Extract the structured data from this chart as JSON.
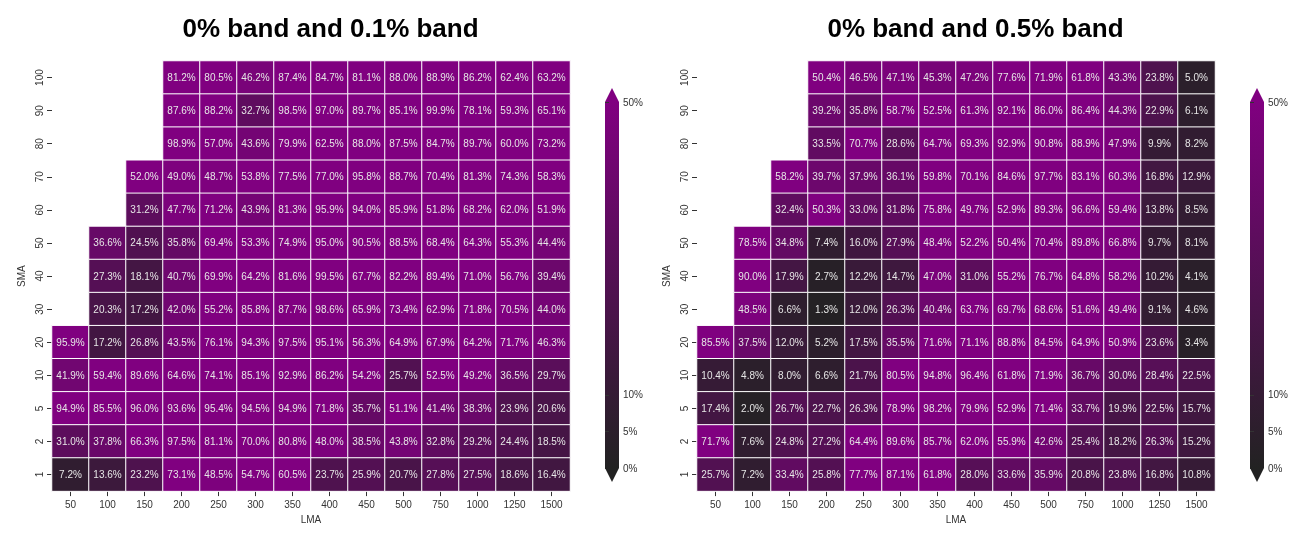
{
  "chart_data": [
    {
      "type": "heatmap",
      "title": "0% band and 0.1% band",
      "xlabel": "LMA",
      "ylabel": "SMA",
      "categories": [
        "50",
        "100",
        "150",
        "200",
        "250",
        "300",
        "350",
        "400",
        "450",
        "500",
        "750",
        "1000",
        "1250",
        "1500"
      ],
      "y_categories": [
        "100",
        "90",
        "80",
        "70",
        "60",
        "50",
        "40",
        "30",
        "20",
        "10",
        "5",
        "2",
        "1"
      ],
      "clim": [
        0,
        50
      ],
      "cticks": [
        {
          "value": 0,
          "label": "0%"
        },
        {
          "value": 5,
          "label": "5%"
        },
        {
          "value": 10,
          "label": "10%"
        },
        {
          "value": 50,
          "label": "50%"
        }
      ],
      "cells": [
        [
          null,
          null,
          null,
          81.2,
          80.5,
          46.2,
          87.4,
          84.7,
          81.1,
          88.0,
          88.9,
          86.2,
          62.4,
          63.2
        ],
        [
          null,
          null,
          null,
          87.6,
          88.2,
          32.7,
          98.5,
          97.0,
          89.7,
          85.1,
          99.9,
          78.1,
          59.3,
          65.1
        ],
        [
          null,
          null,
          null,
          98.9,
          57.0,
          43.6,
          79.9,
          62.5,
          88.0,
          87.5,
          84.7,
          89.7,
          60.0,
          73.2
        ],
        [
          null,
          null,
          52.0,
          49.0,
          48.7,
          53.8,
          77.5,
          77.0,
          95.8,
          88.7,
          70.4,
          81.3,
          74.3,
          58.3
        ],
        [
          null,
          null,
          31.2,
          47.7,
          71.2,
          43.9,
          81.3,
          95.9,
          94.0,
          85.9,
          51.8,
          68.2,
          62.0,
          51.9
        ],
        [
          null,
          36.6,
          24.5,
          35.8,
          69.4,
          53.3,
          74.9,
          95.0,
          90.5,
          88.5,
          68.4,
          64.3,
          55.3,
          44.4
        ],
        [
          null,
          27.3,
          18.1,
          40.7,
          69.9,
          64.2,
          81.6,
          99.5,
          67.7,
          82.2,
          89.4,
          71.0,
          56.7,
          39.4
        ],
        [
          null,
          20.3,
          17.2,
          42.0,
          55.2,
          85.8,
          87.7,
          98.6,
          65.9,
          73.4,
          62.9,
          71.8,
          70.5,
          44.0
        ],
        [
          95.9,
          17.2,
          26.8,
          43.5,
          76.1,
          94.3,
          97.5,
          95.1,
          56.3,
          64.9,
          67.9,
          64.2,
          71.7,
          46.3
        ],
        [
          41.9,
          59.4,
          89.6,
          64.6,
          74.1,
          85.1,
          92.9,
          86.2,
          54.2,
          25.7,
          52.5,
          49.2,
          36.5,
          29.7
        ],
        [
          94.9,
          85.5,
          96.0,
          93.6,
          95.4,
          94.5,
          94.9,
          71.8,
          35.7,
          51.1,
          41.4,
          38.3,
          23.9,
          20.6
        ],
        [
          31.0,
          37.8,
          66.3,
          97.5,
          81.1,
          70.0,
          80.8,
          48.0,
          38.5,
          43.8,
          32.8,
          29.2,
          24.4,
          18.5
        ],
        [
          7.2,
          13.6,
          23.2,
          73.1,
          48.5,
          54.7,
          60.5,
          23.7,
          25.9,
          20.7,
          27.8,
          27.5,
          18.6,
          16.4
        ]
      ],
      "cell_labels": [
        [
          null,
          null,
          null,
          "81.2%",
          "80.5%",
          "46.2%",
          "87.4%",
          "84.7%",
          "81.1%",
          "88.0%",
          "88.9%",
          "86.2%",
          "62.4%",
          "63.2%"
        ],
        [
          null,
          null,
          null,
          "87.6%",
          "88.2%",
          "32.7%",
          "98.5%",
          "97.0%",
          "89.7%",
          "85.1%",
          "99.9%",
          "78.1%",
          "59.3%",
          "65.1%"
        ],
        [
          null,
          null,
          null,
          "98.9%",
          "57.0%",
          "43.6%",
          "79.9%",
          "62.5%",
          "88.0%",
          "87.5%",
          "84.7%",
          "89.7%",
          "60.0%",
          "73.2%"
        ],
        [
          null,
          null,
          "52.0%",
          "49.0%",
          "48.7%",
          "53.8%",
          "77.5%",
          "77.0%",
          "95.8%",
          "88.7%",
          "70.4%",
          "81.3%",
          "74.3%",
          "58.3%"
        ],
        [
          null,
          null,
          "31.2%",
          "47.7%",
          "71.2%",
          "43.9%",
          "81.3%",
          "95.9%",
          "94.0%",
          "85.9%",
          "51.8%",
          "68.2%",
          "62.0%",
          "51.9%"
        ],
        [
          null,
          "36.6%",
          "24.5%",
          "35.8%",
          "69.4%",
          "53.3%",
          "74.9%",
          "95.0%",
          "90.5%",
          "88.5%",
          "68.4%",
          "64.3%",
          "55.3%",
          "44.4%"
        ],
        [
          null,
          "27.3%",
          "18.1%",
          "40.7%",
          "69.9%",
          "64.2%",
          "81.6%",
          "99.5%",
          "67.7%",
          "82.2%",
          "89.4%",
          "71.0%",
          "56.7%",
          "39.4%"
        ],
        [
          null,
          "20.3%",
          "17.2%",
          "42.0%",
          "55.2%",
          "85.8%",
          "87.7%",
          "98.6%",
          "65.9%",
          "73.4%",
          "62.9%",
          "71.8%",
          "70.5%",
          "44.0%"
        ],
        [
          "95.9%",
          "17.2%",
          "26.8%",
          "43.5%",
          "76.1%",
          "94.3%",
          "97.5%",
          "95.1%",
          "56.3%",
          "64.9%",
          "67.9%",
          "64.2%",
          "71.7%",
          "46.3%"
        ],
        [
          "41.9%",
          "59.4%",
          "89.6%",
          "64.6%",
          "74.1%",
          "85.1%",
          "92.9%",
          "86.2%",
          "54.2%",
          "25.7%",
          "52.5%",
          "49.2%",
          "36.5%",
          "29.7%"
        ],
        [
          "94.9%",
          "85.5%",
          "96.0%",
          "93.6%",
          "95.4%",
          "94.5%",
          "94.9%",
          "71.8%",
          "35.7%",
          "51.1%",
          "41.4%",
          "38.3%",
          "23.9%",
          "20.6%"
        ],
        [
          "31.0%",
          "37.8%",
          "66.3%",
          "97.5%",
          "81.1%",
          "70.0%",
          "80.8%",
          "48.0%",
          "38.5%",
          "43.8%",
          "32.8%",
          "29.2%",
          "24.4%",
          "18.5%"
        ],
        [
          "7.2%",
          "13.6%",
          "23.2%",
          "73.1%",
          "48.5%",
          "54.7%",
          "60.5%",
          "23.7%",
          "25.9%",
          "20.7%",
          "27.8%",
          "27.5%",
          "18.6%",
          "16.4%"
        ]
      ]
    },
    {
      "type": "heatmap",
      "title": "0% band and 0.5% band",
      "xlabel": "LMA",
      "ylabel": "SMA",
      "categories": [
        "50",
        "100",
        "150",
        "200",
        "250",
        "300",
        "350",
        "400",
        "450",
        "500",
        "750",
        "1000",
        "1250",
        "1500"
      ],
      "y_categories": [
        "100",
        "90",
        "80",
        "70",
        "60",
        "50",
        "40",
        "30",
        "20",
        "10",
        "5",
        "2",
        "1"
      ],
      "clim": [
        0,
        50
      ],
      "cticks": [
        {
          "value": 0,
          "label": "0%"
        },
        {
          "value": 5,
          "label": "5%"
        },
        {
          "value": 10,
          "label": "10%"
        },
        {
          "value": 50,
          "label": "50%"
        }
      ],
      "cells": [
        [
          null,
          null,
          null,
          50.4,
          46.5,
          47.1,
          45.3,
          47.2,
          77.6,
          71.9,
          61.8,
          43.3,
          23.8,
          5.0
        ],
        [
          null,
          null,
          null,
          39.2,
          35.8,
          58.7,
          52.5,
          61.3,
          92.1,
          86.0,
          86.4,
          44.3,
          22.9,
          6.1
        ],
        [
          null,
          null,
          null,
          33.5,
          70.7,
          28.6,
          64.7,
          69.3,
          92.9,
          90.8,
          88.9,
          47.9,
          9.9,
          8.2
        ],
        [
          null,
          null,
          58.2,
          39.7,
          37.9,
          36.1,
          59.8,
          70.1,
          84.6,
          97.7,
          83.1,
          60.3,
          16.8,
          12.9
        ],
        [
          null,
          null,
          32.4,
          50.3,
          33.0,
          31.8,
          75.8,
          49.7,
          52.9,
          89.3,
          96.6,
          59.4,
          13.8,
          8.5
        ],
        [
          null,
          78.5,
          34.8,
          7.4,
          16.0,
          27.9,
          48.4,
          52.2,
          50.4,
          70.4,
          89.8,
          66.8,
          9.7,
          8.1
        ],
        [
          null,
          90.0,
          17.9,
          2.7,
          12.2,
          14.7,
          47.0,
          31.0,
          55.2,
          76.7,
          64.8,
          58.2,
          10.2,
          4.1
        ],
        [
          null,
          48.5,
          6.6,
          1.3,
          12.0,
          26.3,
          40.4,
          63.7,
          69.7,
          68.6,
          51.6,
          49.4,
          9.1,
          4.6
        ],
        [
          85.5,
          37.5,
          12.0,
          5.2,
          17.5,
          35.5,
          71.6,
          71.1,
          88.8,
          84.5,
          64.9,
          50.9,
          23.6,
          3.4
        ],
        [
          10.4,
          4.8,
          8.0,
          6.6,
          21.7,
          80.5,
          94.8,
          96.4,
          61.8,
          71.9,
          36.7,
          30.0,
          28.4,
          22.5
        ],
        [
          17.4,
          2.0,
          26.7,
          22.7,
          26.3,
          78.9,
          98.2,
          79.9,
          52.9,
          71.4,
          33.7,
          19.9,
          22.5,
          15.7
        ],
        [
          71.7,
          7.6,
          24.8,
          27.2,
          64.4,
          89.6,
          85.7,
          62.0,
          55.9,
          42.6,
          25.4,
          18.2,
          26.3,
          15.2
        ],
        [
          25.7,
          7.2,
          33.4,
          25.8,
          77.7,
          87.1,
          61.8,
          28.0,
          33.6,
          35.9,
          20.8,
          23.8,
          16.8,
          10.8
        ]
      ],
      "cell_labels": [
        [
          null,
          null,
          null,
          "50.4%",
          "46.5%",
          "47.1%",
          "45.3%",
          "47.2%",
          "77.6%",
          "71.9%",
          "61.8%",
          "43.3%",
          "23.8%",
          "5.0%"
        ],
        [
          null,
          null,
          null,
          "39.2%",
          "35.8%",
          "58.7%",
          "52.5%",
          "61.3%",
          "92.1%",
          "86.0%",
          "86.4%",
          "44.3%",
          "22.9%",
          "6.1%"
        ],
        [
          null,
          null,
          null,
          "33.5%",
          "70.7%",
          "28.6%",
          "64.7%",
          "69.3%",
          "92.9%",
          "90.8%",
          "88.9%",
          "47.9%",
          "9.9%",
          "8.2%"
        ],
        [
          null,
          null,
          "58.2%",
          "39.7%",
          "37.9%",
          "36.1%",
          "59.8%",
          "70.1%",
          "84.6%",
          "97.7%",
          "83.1%",
          "60.3%",
          "16.8%",
          "12.9%"
        ],
        [
          null,
          null,
          "32.4%",
          "50.3%",
          "33.0%",
          "31.8%",
          "75.8%",
          "49.7%",
          "52.9%",
          "89.3%",
          "96.6%",
          "59.4%",
          "13.8%",
          "8.5%"
        ],
        [
          null,
          "78.5%",
          "34.8%",
          "7.4%",
          "16.0%",
          "27.9%",
          "48.4%",
          "52.2%",
          "50.4%",
          "70.4%",
          "89.8%",
          "66.8%",
          "9.7%",
          "8.1%"
        ],
        [
          null,
          "90.0%",
          "17.9%",
          "2.7%",
          "12.2%",
          "14.7%",
          "47.0%",
          "31.0%",
          "55.2%",
          "76.7%",
          "64.8%",
          "58.2%",
          "10.2%",
          "4.1%"
        ],
        [
          null,
          "48.5%",
          "6.6%",
          "1.3%",
          "12.0%",
          "26.3%",
          "40.4%",
          "63.7%",
          "69.7%",
          "68.6%",
          "51.6%",
          "49.4%",
          "9.1%",
          "4.6%"
        ],
        [
          "85.5%",
          "37.5%",
          "12.0%",
          "5.2%",
          "17.5%",
          "35.5%",
          "71.6%",
          "71.1%",
          "88.8%",
          "84.5%",
          "64.9%",
          "50.9%",
          "23.6%",
          "3.4%"
        ],
        [
          "10.4%",
          "4.8%",
          "8.0%",
          "6.6%",
          "21.7%",
          "80.5%",
          "94.8%",
          "96.4%",
          "61.8%",
          "71.9%",
          "36.7%",
          "30.0%",
          "28.4%",
          "22.5%"
        ],
        [
          "17.4%",
          "2.0%",
          "26.7%",
          "22.7%",
          "26.3%",
          "78.9%",
          "98.2%",
          "79.9%",
          "52.9%",
          "71.4%",
          "33.7%",
          "19.9%",
          "22.5%",
          "15.7%"
        ],
        [
          "71.7%",
          "7.6%",
          "24.8%",
          "27.2%",
          "64.4%",
          "89.6%",
          "85.7%",
          "62.0%",
          "55.9%",
          "42.6%",
          "25.4%",
          "18.2%",
          "26.3%",
          "15.2%"
        ],
        [
          "25.7%",
          "7.2%",
          "33.4%",
          "25.8%",
          "77.7%",
          "87.1%",
          "61.8%",
          "28.0%",
          "33.6%",
          "35.9%",
          "20.8%",
          "23.8%",
          "16.8%",
          "10.8%"
        ]
      ]
    }
  ]
}
